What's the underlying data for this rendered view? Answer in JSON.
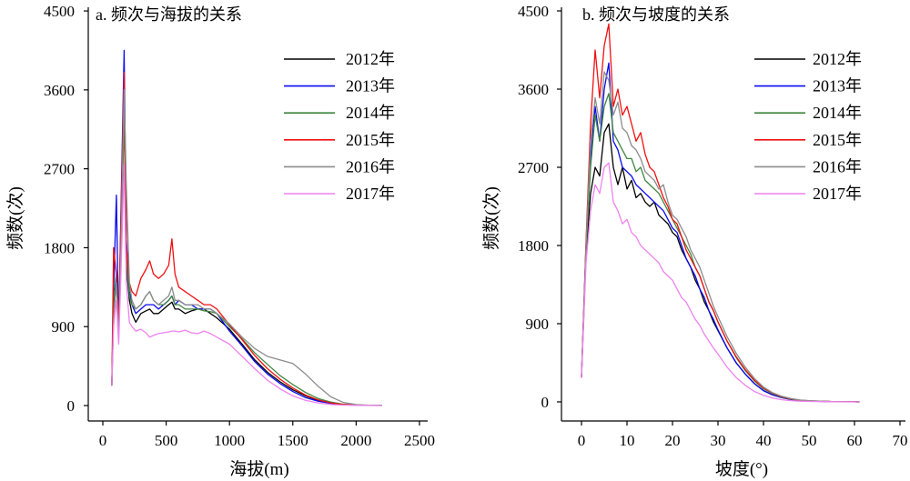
{
  "chart_data": [
    {
      "type": "line",
      "title": "a. 频次与海拔的关系",
      "xlabel": "海拔(m)",
      "ylabel": "频数(次)",
      "xlim": [
        -115,
        2565
      ],
      "ylim": [
        -176,
        4542
      ],
      "x_ticks": [
        0,
        500,
        1000,
        1500,
        2000,
        2500
      ],
      "y_ticks": [
        0,
        900,
        1800,
        2700,
        3600,
        4500
      ],
      "grid": false,
      "legend": "top-right",
      "x": [
        71,
        85,
        107,
        125,
        143,
        168,
        185,
        210,
        230,
        260,
        300,
        340,
        370,
        400,
        440,
        480,
        520,
        545,
        570,
        600,
        650,
        700,
        750,
        800,
        850,
        900,
        1000,
        1100,
        1200,
        1300,
        1400,
        1500,
        1600,
        1700,
        1800,
        1900,
        2000,
        2100,
        2200
      ],
      "series": [
        {
          "name": "2012年",
          "color": "#000000",
          "values": [
            230,
            1100,
            1400,
            900,
            1800,
            3350,
            1600,
            1200,
            1050,
            950,
            1050,
            1080,
            1100,
            1050,
            1050,
            1100,
            1150,
            1180,
            1100,
            1100,
            1050,
            1080,
            1100,
            1100,
            1050,
            1000,
            870,
            700,
            520,
            380,
            270,
            180,
            110,
            60,
            30,
            12,
            5,
            2,
            1
          ]
        },
        {
          "name": "2013年",
          "color": "#0a0af0",
          "values": [
            230,
            1300,
            2400,
            850,
            2200,
            4050,
            1900,
            1300,
            1150,
            1050,
            1100,
            1150,
            1150,
            1150,
            1100,
            1150,
            1200,
            1250,
            1150,
            1200,
            1150,
            1150,
            1100,
            1100,
            1100,
            1050,
            850,
            680,
            500,
            360,
            250,
            160,
            90,
            50,
            25,
            10,
            4,
            2,
            1
          ]
        },
        {
          "name": "2014年",
          "color": "#3f863f",
          "values": [
            230,
            1200,
            1500,
            850,
            1900,
            3300,
            1700,
            1250,
            1150,
            1100,
            1150,
            1250,
            1300,
            1200,
            1150,
            1150,
            1200,
            1250,
            1150,
            1150,
            1100,
            1100,
            1100,
            1080,
            1070,
            1050,
            900,
            760,
            600,
            470,
            340,
            240,
            150,
            80,
            40,
            15,
            6,
            2,
            1
          ]
        },
        {
          "name": "2015年",
          "color": "#f01010",
          "values": [
            230,
            1800,
            1500,
            900,
            2100,
            3800,
            1800,
            1400,
            1300,
            1250,
            1450,
            1550,
            1650,
            1500,
            1450,
            1500,
            1600,
            1900,
            1500,
            1350,
            1300,
            1250,
            1200,
            1150,
            1150,
            1100,
            920,
            750,
            570,
            420,
            300,
            200,
            120,
            65,
            30,
            12,
            5,
            2,
            1
          ]
        },
        {
          "name": "2016年",
          "color": "#8c8c8c",
          "values": [
            230,
            1000,
            1400,
            750,
            1800,
            3600,
            2500,
            1400,
            1200,
            1100,
            1150,
            1250,
            1300,
            1200,
            1150,
            1200,
            1250,
            1350,
            1200,
            1200,
            1150,
            1150,
            1150,
            1100,
            1100,
            1050,
            930,
            780,
            650,
            560,
            520,
            480,
            360,
            220,
            100,
            35,
            12,
            4,
            1
          ]
        },
        {
          "name": "2017年",
          "color": "#ee82ee",
          "values": [
            230,
            900,
            1200,
            700,
            1500,
            2750,
            1400,
            950,
            900,
            850,
            870,
            830,
            780,
            800,
            820,
            830,
            840,
            850,
            850,
            840,
            860,
            830,
            820,
            850,
            820,
            780,
            700,
            560,
            420,
            290,
            190,
            110,
            60,
            30,
            12,
            5,
            2,
            1,
            0
          ]
        }
      ]
    },
    {
      "type": "line",
      "title": "b. 频次与坡度的关系",
      "xlabel": "坡度(°)",
      "ylabel": "频数(次)",
      "xlim": [
        -4.4,
        71.2
      ],
      "ylim": [
        -220,
        4542
      ],
      "x_ticks": [
        0,
        10,
        20,
        30,
        40,
        50,
        60,
        70
      ],
      "y_ticks": [
        0,
        900,
        1800,
        2700,
        3600,
        4500
      ],
      "grid": false,
      "legend": "top-right",
      "x": [
        0,
        1,
        2,
        3,
        4,
        5,
        6,
        7,
        8,
        9,
        10,
        11,
        12,
        13,
        14,
        15,
        16,
        17,
        18,
        19,
        20,
        21,
        22,
        23,
        24,
        25,
        26,
        27,
        28,
        29,
        30,
        32,
        34,
        36,
        38,
        40,
        42,
        44,
        46,
        48,
        50,
        55,
        60,
        61
      ],
      "series": [
        {
          "name": "2012年",
          "color": "#000000",
          "values": [
            290,
            1700,
            2400,
            2700,
            2600,
            3100,
            3200,
            2700,
            2500,
            2700,
            2450,
            2550,
            2350,
            2400,
            2300,
            2250,
            2300,
            2150,
            2100,
            2050,
            1950,
            1900,
            1750,
            1650,
            1550,
            1400,
            1300,
            1150,
            1050,
            920,
            820,
            620,
            450,
            320,
            210,
            130,
            80,
            50,
            28,
            16,
            9,
            3,
            1,
            0
          ]
        },
        {
          "name": "2013年",
          "color": "#0a0af0",
          "values": [
            290,
            1800,
            2800,
            3400,
            3000,
            3600,
            3900,
            3000,
            2900,
            2700,
            2650,
            2600,
            2500,
            2450,
            2400,
            2350,
            2300,
            2250,
            2200,
            2100,
            2000,
            1950,
            1800,
            1650,
            1550,
            1450,
            1300,
            1200,
            1050,
            950,
            830,
            620,
            450,
            320,
            210,
            130,
            80,
            50,
            28,
            16,
            9,
            3,
            1,
            0
          ]
        },
        {
          "name": "2014年",
          "color": "#3f863f",
          "values": [
            290,
            1750,
            2700,
            3300,
            3000,
            3400,
            3550,
            3100,
            3000,
            2900,
            2800,
            2800,
            2650,
            2700,
            2550,
            2500,
            2450,
            2400,
            2300,
            2200,
            2100,
            2000,
            1900,
            1800,
            1700,
            1550,
            1450,
            1300,
            1150,
            1050,
            920,
            700,
            510,
            360,
            240,
            150,
            95,
            55,
            32,
            18,
            10,
            3,
            1,
            0
          ]
        },
        {
          "name": "2015年",
          "color": "#f01010",
          "values": [
            290,
            1850,
            3200,
            4050,
            3500,
            4100,
            4350,
            3400,
            3600,
            3300,
            3400,
            3200,
            3000,
            3100,
            2850,
            2700,
            2650,
            2500,
            2350,
            2250,
            2100,
            2050,
            1900,
            1750,
            1650,
            1550,
            1450,
            1300,
            1150,
            1050,
            920,
            700,
            520,
            370,
            250,
            160,
            100,
            60,
            35,
            20,
            12,
            4,
            1,
            0
          ]
        },
        {
          "name": "2016年",
          "color": "#8c8c8c",
          "values": [
            290,
            1800,
            3000,
            3500,
            3200,
            3800,
            3700,
            3300,
            3450,
            3150,
            3100,
            2950,
            2900,
            2800,
            2650,
            2600,
            2550,
            2450,
            2500,
            2300,
            2150,
            2100,
            2000,
            1900,
            1750,
            1650,
            1550,
            1400,
            1250,
            1100,
            980,
            750,
            560,
            400,
            270,
            170,
            105,
            65,
            38,
            22,
            13,
            4,
            1,
            0
          ]
        },
        {
          "name": "2017年",
          "color": "#ee82ee",
          "values": [
            280,
            1600,
            2200,
            2500,
            2400,
            2700,
            2750,
            2300,
            2200,
            2050,
            2100,
            1950,
            1900,
            1800,
            1750,
            1700,
            1650,
            1600,
            1500,
            1450,
            1400,
            1300,
            1200,
            1150,
            1050,
            950,
            880,
            780,
            700,
            620,
            550,
            400,
            280,
            190,
            120,
            75,
            45,
            25,
            14,
            8,
            5,
            2,
            0,
            0
          ]
        }
      ]
    }
  ]
}
